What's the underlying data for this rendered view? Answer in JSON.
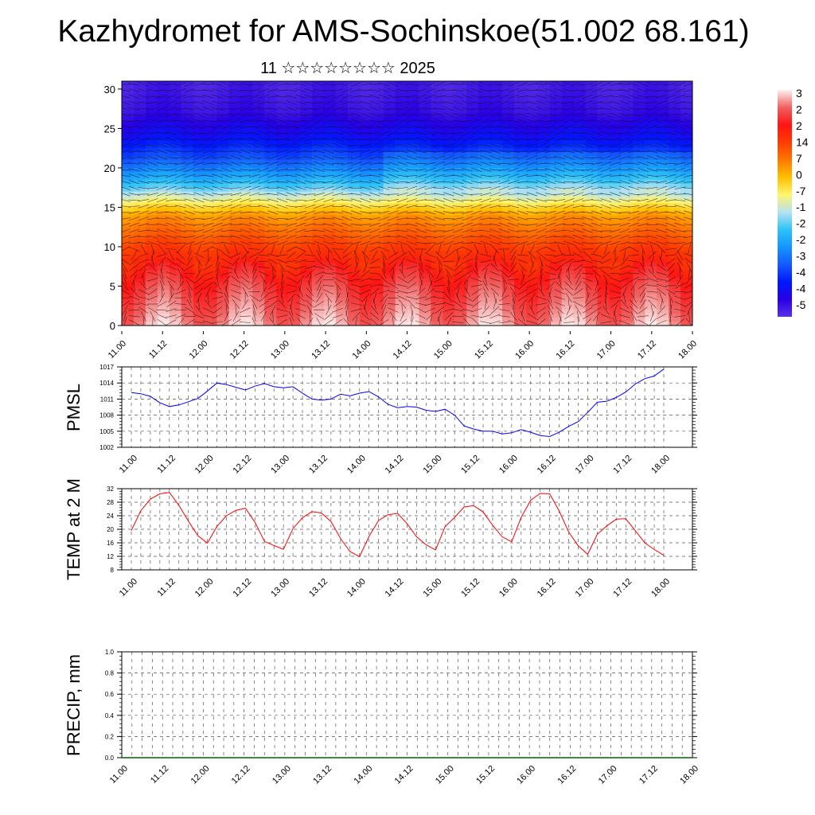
{
  "header": {
    "title": "Kazhydromet for AMS-Sochinskoe(51.002 68.161)",
    "subtitle": "11 ☆☆☆☆☆☆☆☆ 2025"
  },
  "time_labels": [
    "11.00",
    "11.12",
    "12.00",
    "12.12",
    "13.00",
    "13.12",
    "14.00",
    "14.12",
    "15.00",
    "15.12",
    "16.00",
    "16.12",
    "17.00",
    "17.12",
    "18.00"
  ],
  "colors": {
    "pmsl_line": "#0000ff",
    "temp_line": "#ff0000",
    "precip_line": "#006400"
  },
  "chart_data": [
    {
      "id": "cross-section",
      "type": "heatmap",
      "ylim": [
        0,
        30
      ],
      "yticks": [
        "0",
        "5",
        "10",
        "15",
        "20",
        "25",
        "30"
      ],
      "colorbar_labels": [
        "3",
        "2",
        "2",
        "14",
        "7",
        "0",
        "-7",
        "-1",
        "-2",
        "-2",
        "-3",
        "-4",
        "-4",
        "-5"
      ],
      "colormap_stops": [
        "#fff0f0",
        "#f06060",
        "#ff1414",
        "#ff3c00",
        "#ff7800",
        "#ffc000",
        "#fff56e",
        "#b7e3f2",
        "#2fc3f7",
        "#1496ff",
        "#145aff",
        "#0018ff",
        "#2800e6",
        "#5a32e6"
      ],
      "temperature_profile_by_height": [
        {
          "h": 0,
          "t": 28
        },
        {
          "h": 5,
          "t": 22
        },
        {
          "h": 10,
          "t": 12
        },
        {
          "h": 14,
          "t": 2
        },
        {
          "h": 16,
          "t": -10
        },
        {
          "h": 18,
          "t": -22
        },
        {
          "h": 21,
          "t": -35
        },
        {
          "h": 24,
          "t": -44
        },
        {
          "h": 27,
          "t": -50
        },
        {
          "h": 30,
          "t": -52
        }
      ],
      "colorbar_range": [
        -55,
        32
      ]
    },
    {
      "id": "pmsl",
      "type": "line",
      "ylabel": "PMSL",
      "ylim": [
        1002,
        1017
      ],
      "yticks": [
        "1002",
        "1005",
        "1008",
        "1011",
        "1014",
        "1017"
      ],
      "x": [
        "11.00",
        "11.03",
        "11.06",
        "11.09",
        "11.12",
        "11.15",
        "11.18",
        "11.21",
        "12.00",
        "12.03",
        "12.06",
        "12.09",
        "12.12",
        "12.15",
        "12.18",
        "12.21",
        "13.00",
        "13.03",
        "13.06",
        "13.09",
        "13.12",
        "13.15",
        "13.18",
        "13.21",
        "14.00",
        "14.03",
        "14.06",
        "14.09",
        "14.12",
        "14.15",
        "14.18",
        "14.21",
        "15.00",
        "15.03",
        "15.06",
        "15.09",
        "15.12",
        "15.15",
        "15.18",
        "15.21",
        "16.00",
        "16.03",
        "16.06",
        "16.09",
        "16.12",
        "16.15",
        "16.18",
        "16.21",
        "17.00",
        "17.03",
        "17.06",
        "17.09",
        "17.12",
        "17.15",
        "17.18",
        "17.21",
        "18.00"
      ],
      "values": [
        1012.2,
        1012.0,
        1011.5,
        1010.3,
        1009.6,
        1009.9,
        1010.5,
        1011.1,
        1012.5,
        1014.0,
        1013.7,
        1013.2,
        1012.7,
        1013.4,
        1013.9,
        1013.3,
        1013.1,
        1013.3,
        1012.1,
        1011.0,
        1010.8,
        1011.0,
        1011.9,
        1011.6,
        1012.1,
        1012.4,
        1011.4,
        1010.0,
        1009.4,
        1009.6,
        1009.5,
        1008.9,
        1008.7,
        1009.1,
        1008.0,
        1006.0,
        1005.4,
        1005.0,
        1005.0,
        1004.5,
        1004.7,
        1005.3,
        1004.8,
        1004.2,
        1004.0,
        1004.8,
        1005.9,
        1006.8,
        1008.5,
        1010.4,
        1010.6,
        1011.3,
        1012.3,
        1013.8,
        1014.8,
        1015.3,
        1016.6
      ]
    },
    {
      "id": "temp2m",
      "type": "line",
      "ylabel": "TEMP at 2 M",
      "ylim": [
        8,
        32
      ],
      "yticks": [
        "8",
        "12",
        "16",
        "20",
        "24",
        "28",
        "32"
      ],
      "values": [
        19.6,
        25.5,
        28.9,
        30.5,
        30.9,
        27.1,
        22.4,
        18.1,
        15.9,
        20.8,
        24.0,
        25.6,
        26.2,
        22.1,
        16.4,
        15.2,
        14.1,
        20.2,
        23.4,
        25.2,
        24.8,
        22.3,
        17.3,
        13.4,
        11.9,
        17.9,
        22.6,
        24.3,
        24.7,
        21.7,
        17.8,
        15.4,
        13.9,
        20.8,
        23.5,
        26.6,
        27.0,
        25.1,
        21.2,
        17.8,
        16.3,
        23.5,
        28.6,
        30.6,
        30.5,
        25.4,
        19.2,
        15.1,
        12.6,
        18.5,
        21.0,
        23.0,
        23.1,
        19.6,
        16.0,
        14.0,
        12.3
      ]
    },
    {
      "id": "precip",
      "type": "line",
      "ylabel": "PRECIP, mm",
      "ylim": [
        0,
        1
      ],
      "yticks": [
        "0.0",
        "0.2",
        "0.4",
        "0.6",
        "0.8",
        "1.0"
      ],
      "values": [
        0,
        0,
        0,
        0,
        0,
        0,
        0,
        0,
        0,
        0,
        0,
        0,
        0,
        0,
        0,
        0,
        0,
        0,
        0,
        0,
        0,
        0,
        0,
        0,
        0,
        0,
        0,
        0,
        0,
        0,
        0,
        0,
        0,
        0,
        0,
        0,
        0,
        0,
        0,
        0,
        0,
        0,
        0,
        0,
        0,
        0,
        0,
        0,
        0,
        0,
        0,
        0,
        0,
        0,
        0,
        0,
        0
      ]
    }
  ]
}
